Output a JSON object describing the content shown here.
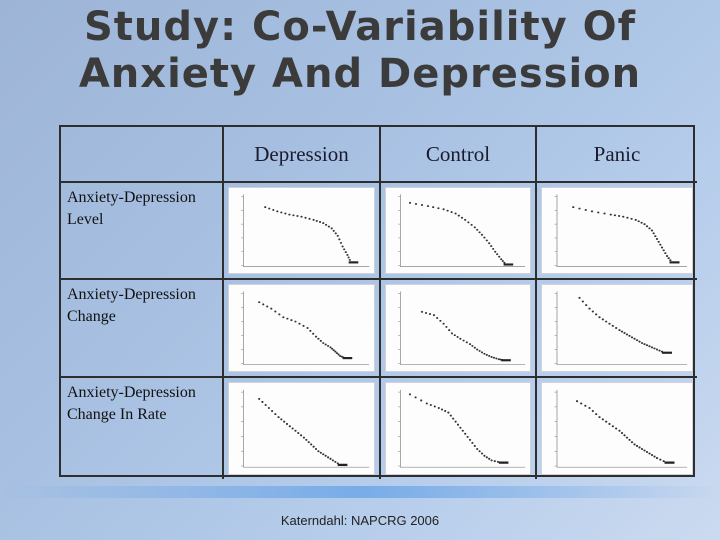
{
  "title_line1": "Study: Co-Variability Of",
  "title_line2": "Anxiety And Depression",
  "table": {
    "columns": [
      "Depression",
      "Control",
      "Panic"
    ],
    "rows": [
      "Anxiety-Depression Level",
      "Anxiety-Depression Change",
      "Anxiety-Depression Change In Rate"
    ]
  },
  "footer": "Katerndahl:  NAPCRG  2006",
  "colors": {
    "accent": "#3b3b3b",
    "background": "#a8c1e2"
  }
}
